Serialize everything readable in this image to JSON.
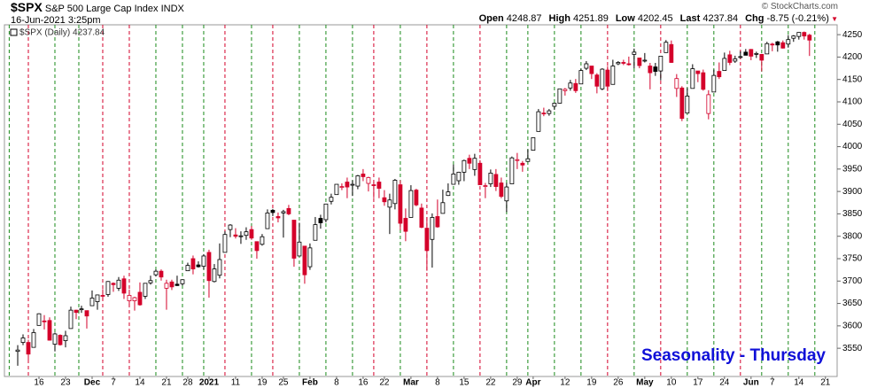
{
  "chart_data": {
    "type": "candlestick",
    "symbol": "$SPX",
    "name": "S&P 500 Large Cap Index",
    "exchange": "INDX",
    "datetime": "16-Jun-2021 3:25pm",
    "quote": [
      {
        "label": "Open",
        "value": "4248.87"
      },
      {
        "label": "High",
        "value": "4251.89"
      },
      {
        "label": "Low",
        "value": "4202.45"
      },
      {
        "label": "Last",
        "value": "4237.84"
      },
      {
        "label": "Chg",
        "value": "-8.75 (-0.21%)"
      }
    ],
    "copyright": "© StockCharts.com",
    "legend": "$SPX (Daily) 4237.84",
    "annotation": "Seasonality - Thursday",
    "up_color": "#000000",
    "down_color": "#d4002a",
    "annotation_color": "#1010d8",
    "xlim": [
      -2.5,
      154.2
    ],
    "ylim": [
      3487,
      4272
    ],
    "yticks": [
      3550,
      3600,
      3650,
      3700,
      3750,
      3800,
      3850,
      3900,
      3950,
      4000,
      4050,
      4100,
      4150,
      4200,
      4250
    ],
    "xticks": [
      {
        "value": 4,
        "label": "16"
      },
      {
        "value": 9,
        "label": "23"
      },
      {
        "value": 14,
        "label": "Dec"
      },
      {
        "value": 18,
        "label": "7"
      },
      {
        "value": 23,
        "label": "14"
      },
      {
        "value": 28,
        "label": "21"
      },
      {
        "value": 32,
        "label": "28"
      },
      {
        "value": 36,
        "label": "2021"
      },
      {
        "value": 41,
        "label": "11"
      },
      {
        "value": 46,
        "label": "19"
      },
      {
        "value": 50,
        "label": "25"
      },
      {
        "value": 55,
        "label": "Feb"
      },
      {
        "value": 60,
        "label": "8"
      },
      {
        "value": 65,
        "label": "16"
      },
      {
        "value": 69,
        "label": "22"
      },
      {
        "value": 74,
        "label": "Mar"
      },
      {
        "value": 79,
        "label": "8"
      },
      {
        "value": 84,
        "label": "15"
      },
      {
        "value": 89,
        "label": "22"
      },
      {
        "value": 94,
        "label": "29"
      },
      {
        "value": 97,
        "label": "Apr"
      },
      {
        "value": 103,
        "label": "12"
      },
      {
        "value": 108,
        "label": "19"
      },
      {
        "value": 113,
        "label": "26"
      },
      {
        "value": 118,
        "label": "May"
      },
      {
        "value": 123,
        "label": "10"
      },
      {
        "value": 128,
        "label": "17"
      },
      {
        "value": 133,
        "label": "24"
      },
      {
        "value": 138,
        "label": "Jun"
      },
      {
        "value": 142,
        "label": "7"
      },
      {
        "value": 147,
        "label": "14"
      },
      {
        "value": 152,
        "label": "21"
      }
    ],
    "vlines": [
      {
        "x": -1.6,
        "color": "#1a8a1a"
      },
      {
        "x": 2,
        "color": "#d4002a"
      },
      {
        "x": 7,
        "color": "#1a8a1a"
      },
      {
        "x": 11.5,
        "color": "#1a8a1a"
      },
      {
        "x": 16,
        "color": "#d4002a"
      },
      {
        "x": 21,
        "color": "#d4002a"
      },
      {
        "x": 26,
        "color": "#1a8a1a"
      },
      {
        "x": 31,
        "color": "#1a8a1a"
      },
      {
        "x": 35,
        "color": "#1a8a1a"
      },
      {
        "x": 39,
        "color": "#d4002a"
      },
      {
        "x": 44,
        "color": "#1a8a1a"
      },
      {
        "x": 48,
        "color": "#d4002a"
      },
      {
        "x": 53,
        "color": "#1a8a1a"
      },
      {
        "x": 58,
        "color": "#1a8a1a"
      },
      {
        "x": 63,
        "color": "#1a8a1a"
      },
      {
        "x": 67,
        "color": "#d4002a"
      },
      {
        "x": 72,
        "color": "#1a8a1a"
      },
      {
        "x": 77,
        "color": "#d4002a"
      },
      {
        "x": 82,
        "color": "#1a8a1a"
      },
      {
        "x": 87,
        "color": "#d4002a"
      },
      {
        "x": 92,
        "color": "#1a8a1a"
      },
      {
        "x": 96,
        "color": "#1a8a1a"
      },
      {
        "x": 101,
        "color": "#1a8a1a"
      },
      {
        "x": 106,
        "color": "#1a8a1a"
      },
      {
        "x": 111,
        "color": "#d4002a"
      },
      {
        "x": 116,
        "color": "#1a8a1a"
      },
      {
        "x": 121,
        "color": "#d4002a"
      },
      {
        "x": 126,
        "color": "#1a8a1a"
      },
      {
        "x": 131,
        "color": "#1a8a1a"
      },
      {
        "x": 136,
        "color": "#d4002a"
      },
      {
        "x": 140,
        "color": "#1a8a1a"
      },
      {
        "x": 145,
        "color": "#1a8a1a"
      },
      {
        "x": 150,
        "color": "#1a8a1a"
      }
    ],
    "open": [
      3543,
      3563,
      3563,
      3552,
      3601,
      3611,
      3612,
      3559,
      3579,
      3567,
      3594,
      3635,
      3638,
      3634,
      3645,
      3654,
      3668,
      3670,
      3695,
      3684,
      3705,
      3656,
      3656,
      3675,
      3666,
      3696,
      3714,
      3722,
      3684,
      3698,
      3693,
      3694,
      3723,
      3750,
      3736,
      3733,
      3764,
      3699,
      3713,
      3764,
      3815,
      3803,
      3801,
      3802,
      3815,
      3788,
      3782,
      3817,
      3858,
      3844,
      3852,
      3862,
      3836,
      3756,
      3778,
      3732,
      3791,
      3840,
      3837,
      3878,
      3893,
      3910,
      3921,
      3916,
      3912,
      3939,
      3918,
      3915,
      3921,
      3886,
      3865,
      3873,
      3915,
      3840,
      3842,
      3903,
      3863,
      3818,
      3793,
      3844,
      3851,
      3891,
      3916,
      3924,
      3943,
      3974,
      3949,
      3963,
      3913,
      3917,
      3938,
      3919,
      3879,
      3917,
      3970,
      3963,
      3967,
      3992,
      4034,
      4075,
      4074,
      4090,
      4097,
      4125,
      4131,
      4141,
      4140,
      4175,
      4180,
      4160,
      4129,
      4171,
      4139,
      4185,
      4188,
      4185,
      4206,
      4198,
      4192,
      4180,
      4178,
      4169,
      4210,
      4228,
      4130,
      4131,
      4075,
      4130,
      4169,
      4165,
      4074,
      4122,
      4168,
      4170,
      4205,
      4191,
      4201,
      4211,
      4217,
      4206,
      4206,
      4207,
      4229,
      4234,
      4232,
      4229,
      4242,
      4246,
      4255,
      4248.87
    ],
    "high": [
      3557,
      3581,
      3569,
      3593,
      3628,
      3624,
      3619,
      3585,
      3581,
      3589,
      3643,
      3636,
      3645,
      3634,
      3679,
      3670,
      3682,
      3700,
      3697,
      3709,
      3712,
      3681,
      3665,
      3697,
      3695,
      3712,
      3726,
      3726,
      3703,
      3703,
      3712,
      3703,
      3741,
      3757,
      3744,
      3760,
      3770,
      3738,
      3784,
      3811,
      3827,
      3818,
      3811,
      3820,
      3823,
      3788,
      3805,
      3860,
      3861,
      3853,
      3859,
      3870,
      3836,
      3830,
      3778,
      3784,
      3843,
      3848,
      3872,
      3895,
      3916,
      3918,
      3931,
      3925,
      3937,
      3950,
      3933,
      3921,
      3931,
      3903,
      3895,
      3928,
      3925,
      3862,
      3914,
      3906,
      3873,
      3843,
      3851,
      3882,
      3904,
      3918,
      3960,
      3944,
      3971,
      3982,
      3984,
      3970,
      3919,
      3949,
      3950,
      3931,
      3919,
      3978,
      3986,
      3968,
      3994,
      4020,
      4084,
      4087,
      4084,
      4098,
      4129,
      4131,
      4149,
      4151,
      4174,
      4191,
      4180,
      4164,
      4175,
      4180,
      4194,
      4191,
      4194,
      4201,
      4219,
      4198,
      4209,
      4187,
      4187,
      4202,
      4238,
      4237,
      4162,
      4135,
      4131,
      4184,
      4169,
      4172,
      4126,
      4172,
      4188,
      4210,
      4214,
      4203,
      4213,
      4218,
      4218,
      4212,
      4207,
      4234,
      4232,
      4236,
      4237,
      4249,
      4249,
      4255,
      4257,
      4251.89
    ],
    "low": [
      3511,
      3557,
      3519,
      3552,
      3601,
      3592,
      3567,
      3543,
      3556,
      3552,
      3594,
      3615,
      3629,
      3594,
      3645,
      3636,
      3657,
      3665,
      3676,
      3678,
      3660,
      3645,
      3634,
      3645,
      3660,
      3692,
      3710,
      3701,
      3636,
      3680,
      3689,
      3690,
      3723,
      3715,
      3730,
      3726,
      3663,
      3697,
      3706,
      3764,
      3798,
      3795,
      3783,
      3792,
      3792,
      3750,
      3779,
      3817,
      3845,
      3831,
      3797,
      3847,
      3732,
      3756,
      3694,
      3725,
      3791,
      3817,
      3831,
      3871,
      3893,
      3903,
      3885,
      3890,
      3905,
      3923,
      3900,
      3885,
      3885,
      3868,
      3805,
      3860,
      3814,
      3789,
      3842,
      3867,
      3818,
      3723,
      3730,
      3819,
      3851,
      3890,
      3916,
      3915,
      3923,
      3950,
      3935,
      3914,
      3885,
      3910,
      3901,
      3885,
      3854,
      3917,
      3950,
      3944,
      3967,
      3992,
      4034,
      4068,
      4069,
      4082,
      4096,
      4114,
      4125,
      4120,
      4140,
      4171,
      4151,
      4119,
      4126,
      4124,
      4139,
      4182,
      4182,
      4181,
      4175,
      4175,
      4188,
      4128,
      4158,
      4148,
      4210,
      4187,
      4111,
      4057,
      4075,
      4130,
      4144,
      4125,
      4061,
      4122,
      4151,
      4170,
      4182,
      4187,
      4197,
      4204,
      4193,
      4198,
      4168,
      4207,
      4213,
      4212,
      4219,
      4221,
      4234,
      4239,
      4239,
      4202.45
    ],
    "close": [
      3546,
      3573,
      3537,
      3585,
      3627,
      3610,
      3568,
      3582,
      3558,
      3578,
      3635,
      3630,
      3638,
      3622,
      3662,
      3669,
      3667,
      3699,
      3692,
      3702,
      3673,
      3668,
      3663,
      3647,
      3695,
      3701,
      3722,
      3709,
      3695,
      3687,
      3690,
      3703,
      3735,
      3727,
      3732,
      3756,
      3701,
      3727,
      3748,
      3804,
      3825,
      3800,
      3801,
      3810,
      3796,
      3768,
      3799,
      3852,
      3853,
      3841,
      3855,
      3850,
      3751,
      3787,
      3714,
      3774,
      3826,
      3830,
      3872,
      3887,
      3916,
      3911,
      3910,
      3916,
      3935,
      3933,
      3931,
      3914,
      3907,
      3877,
      3881,
      3925,
      3829,
      3811,
      3902,
      3870,
      3820,
      3768,
      3842,
      3821,
      3875,
      3899,
      3939,
      3943,
      3969,
      3963,
      3974,
      3915,
      3913,
      3941,
      3911,
      3889,
      3910,
      3975,
      3971,
      3959,
      3973,
      4020,
      4078,
      4074,
      4080,
      4097,
      4129,
      4128,
      4142,
      4125,
      4170,
      4185,
      4163,
      4135,
      4173,
      4135,
      4180,
      4188,
      4187,
      4183,
      4211,
      4181,
      4193,
      4165,
      4168,
      4202,
      4233,
      4188,
      4152,
      4063,
      4113,
      4174,
      4163,
      4128,
      4116,
      4159,
      4156,
      4197,
      4188,
      4196,
      4201,
      4204,
      4202,
      4208,
      4193,
      4230,
      4227,
      4227,
      4220,
      4239,
      4247,
      4255,
      4247,
      4237.84
    ]
  }
}
